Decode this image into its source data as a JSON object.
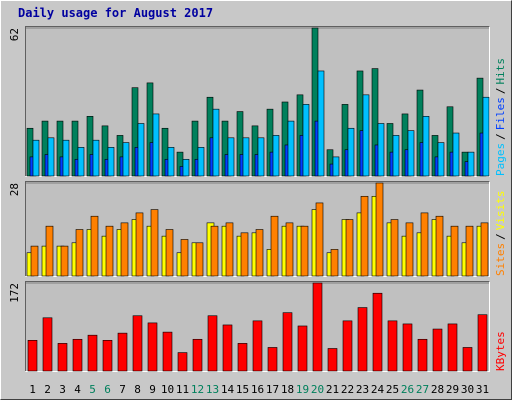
{
  "title": "Daily usage for August 2017",
  "categories": [
    "1",
    "2",
    "3",
    "4",
    "5",
    "6",
    "7",
    "8",
    "9",
    "10",
    "11",
    "12",
    "13",
    "14",
    "15",
    "16",
    "17",
    "18",
    "19",
    "20",
    "21",
    "22",
    "23",
    "24",
    "25",
    "26",
    "27",
    "28",
    "29",
    "30",
    "31"
  ],
  "category_colors": [
    "#000000",
    "#000000",
    "#000000",
    "#000000",
    "#00805c",
    "#00805c",
    "#000000",
    "#000000",
    "#000000",
    "#000000",
    "#000000",
    "#00805c",
    "#00805c",
    "#000000",
    "#000000",
    "#000000",
    "#000000",
    "#000000",
    "#00805c",
    "#00805c",
    "#000000",
    "#000000",
    "#000000",
    "#000000",
    "#000000",
    "#00805c",
    "#00805c",
    "#000000",
    "#000000",
    "#000000",
    "#000000"
  ],
  "legend_separator": "/",
  "chart_data": [
    {
      "type": "bar",
      "ylim": [
        0,
        62
      ],
      "yticks": [
        62
      ],
      "series": [
        {
          "name": "Hits",
          "color": "#00805c",
          "values": [
            20,
            23,
            23,
            23,
            25,
            21,
            17,
            37,
            39,
            20,
            10,
            23,
            33,
            23,
            27,
            21,
            28,
            31,
            34,
            62,
            11,
            30,
            44,
            45,
            22,
            26,
            36,
            17,
            29,
            10,
            41
          ]
        },
        {
          "name": "Files",
          "color": "#0040ff",
          "values": [
            8,
            9,
            8,
            7,
            9,
            7,
            8,
            12,
            14,
            7,
            4,
            7,
            16,
            9,
            9,
            9,
            10,
            13,
            17,
            23,
            5,
            11,
            19,
            13,
            10,
            11,
            14,
            8,
            10,
            6,
            18
          ]
        },
        {
          "name": "Pages",
          "color": "#00c0ff",
          "values": [
            15,
            16,
            15,
            12,
            15,
            12,
            14,
            22,
            26,
            12,
            7,
            12,
            28,
            16,
            16,
            16,
            17,
            23,
            30,
            44,
            8,
            20,
            34,
            22,
            17,
            19,
            25,
            14,
            18,
            10,
            33
          ]
        }
      ]
    },
    {
      "type": "bar",
      "ylim": [
        0,
        28
      ],
      "yticks": [
        28
      ],
      "series": [
        {
          "name": "Visits",
          "color": "#ffff00",
          "values": [
            7,
            9,
            9,
            10,
            14,
            12,
            14,
            17,
            15,
            12,
            7,
            10,
            16,
            15,
            12,
            13,
            8,
            15,
            15,
            20,
            7,
            17,
            19,
            24,
            16,
            12,
            13,
            17,
            12,
            10,
            15
          ]
        },
        {
          "name": "Sites",
          "color": "#ff8000",
          "values": [
            9,
            15,
            9,
            14,
            18,
            15,
            16,
            19,
            20,
            14,
            11,
            10,
            15,
            16,
            13,
            14,
            18,
            16,
            15,
            22,
            8,
            17,
            24,
            28,
            17,
            16,
            19,
            18,
            15,
            15,
            16
          ]
        }
      ]
    },
    {
      "type": "bar",
      "ylim": [
        0,
        172
      ],
      "yticks": [
        172
      ],
      "series": [
        {
          "name": "KBytes",
          "color": "#ff0000",
          "values": [
            60,
            104,
            54,
            62,
            70,
            60,
            74,
            108,
            94,
            76,
            36,
            62,
            108,
            90,
            54,
            98,
            46,
            114,
            88,
            172,
            44,
            98,
            124,
            152,
            98,
            92,
            62,
            82,
            92,
            46,
            110
          ]
        }
      ]
    }
  ]
}
